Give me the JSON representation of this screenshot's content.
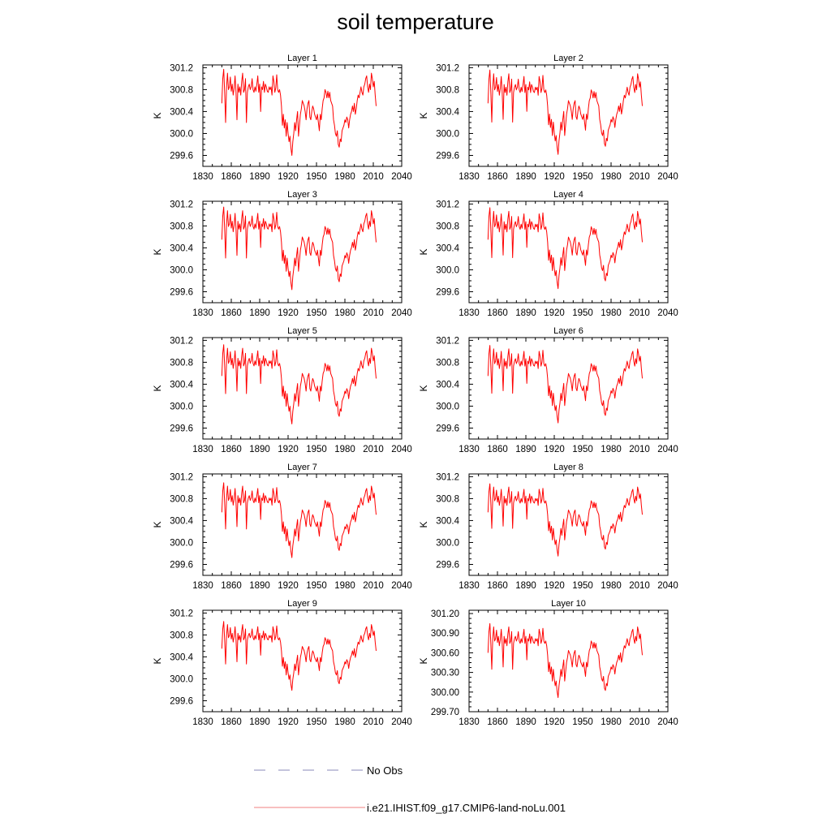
{
  "title": "soil temperature",
  "legend": {
    "items": [
      {
        "label": "No Obs",
        "color": "#8a8ab8",
        "style": "dashed"
      },
      {
        "label": "i.e21.IHIST.f09_g17.CMIP6-land-noLu.001",
        "color": "#f08080",
        "style": "solid"
      }
    ]
  },
  "chart_data": [
    {
      "type": "line",
      "title": "Layer 1",
      "ylabel": "K",
      "xlim": [
        1830,
        2040
      ],
      "ylim": [
        299.4,
        301.25
      ],
      "xticks": [
        1830,
        1860,
        1890,
        1920,
        1950,
        1980,
        2010,
        2040
      ],
      "yticks": [
        "299.6",
        "300.0",
        "300.4",
        "300.8",
        "301.2"
      ],
      "grid": false,
      "series": [
        {
          "color": "#ff0000",
          "x_start": 1850,
          "offset": 0.0,
          "amplitude": 1.0
        }
      ]
    },
    {
      "type": "line",
      "title": "Layer 2",
      "ylabel": "K",
      "xlim": [
        1830,
        2040
      ],
      "ylim": [
        299.4,
        301.25
      ],
      "xticks": [
        1830,
        1860,
        1890,
        1920,
        1950,
        1980,
        2010,
        2040
      ],
      "yticks": [
        "299.6",
        "300.0",
        "300.4",
        "300.8",
        "301.2"
      ],
      "grid": false,
      "series": [
        {
          "color": "#ff0000",
          "x_start": 1850,
          "offset": 0.0,
          "amplitude": 0.98
        }
      ]
    },
    {
      "type": "line",
      "title": "Layer 3",
      "ylabel": "K",
      "xlim": [
        1830,
        2040
      ],
      "ylim": [
        299.4,
        301.25
      ],
      "xticks": [
        1830,
        1860,
        1890,
        1920,
        1950,
        1980,
        2010,
        2040
      ],
      "yticks": [
        "299.6",
        "300.0",
        "300.4",
        "300.8",
        "301.2"
      ],
      "grid": false,
      "series": [
        {
          "color": "#ff0000",
          "x_start": 1850,
          "offset": 0.0,
          "amplitude": 0.96
        }
      ]
    },
    {
      "type": "line",
      "title": "Layer 4",
      "ylabel": "K",
      "xlim": [
        1830,
        2040
      ],
      "ylim": [
        299.4,
        301.25
      ],
      "xticks": [
        1830,
        1860,
        1890,
        1920,
        1950,
        1980,
        2010,
        2040
      ],
      "yticks": [
        "299.6",
        "300.0",
        "300.4",
        "300.8",
        "301.2"
      ],
      "grid": false,
      "series": [
        {
          "color": "#ff0000",
          "x_start": 1850,
          "offset": 0.0,
          "amplitude": 0.94
        }
      ]
    },
    {
      "type": "line",
      "title": "Layer 5",
      "ylabel": "K",
      "xlim": [
        1830,
        2040
      ],
      "ylim": [
        299.4,
        301.25
      ],
      "xticks": [
        1830,
        1860,
        1890,
        1920,
        1950,
        1980,
        2010,
        2040
      ],
      "yticks": [
        "299.6",
        "300.0",
        "300.4",
        "300.8",
        "301.2"
      ],
      "grid": false,
      "series": [
        {
          "color": "#ff0000",
          "x_start": 1850,
          "offset": 0.0,
          "amplitude": 0.92
        }
      ]
    },
    {
      "type": "line",
      "title": "Layer 6",
      "ylabel": "K",
      "xlim": [
        1830,
        2040
      ],
      "ylim": [
        299.4,
        301.25
      ],
      "xticks": [
        1830,
        1860,
        1890,
        1920,
        1950,
        1980,
        2010,
        2040
      ],
      "yticks": [
        "299.6",
        "300.0",
        "300.4",
        "300.8",
        "301.2"
      ],
      "grid": false,
      "series": [
        {
          "color": "#ff0000",
          "x_start": 1850,
          "offset": 0.0,
          "amplitude": 0.9
        }
      ]
    },
    {
      "type": "line",
      "title": "Layer 7",
      "ylabel": "K",
      "xlim": [
        1830,
        2040
      ],
      "ylim": [
        299.4,
        301.25
      ],
      "xticks": [
        1830,
        1860,
        1890,
        1920,
        1950,
        1980,
        2010,
        2040
      ],
      "yticks": [
        "299.6",
        "300.0",
        "300.4",
        "300.8",
        "301.2"
      ],
      "grid": false,
      "series": [
        {
          "color": "#ff0000",
          "x_start": 1850,
          "offset": 0.0,
          "amplitude": 0.87
        }
      ]
    },
    {
      "type": "line",
      "title": "Layer 8",
      "ylabel": "K",
      "xlim": [
        1830,
        2040
      ],
      "ylim": [
        299.4,
        301.25
      ],
      "xticks": [
        1830,
        1860,
        1890,
        1920,
        1950,
        1980,
        2010,
        2040
      ],
      "yticks": [
        "299.6",
        "300.0",
        "300.4",
        "300.8",
        "301.2"
      ],
      "grid": false,
      "series": [
        {
          "color": "#ff0000",
          "x_start": 1850,
          "offset": 0.0,
          "amplitude": 0.84
        }
      ]
    },
    {
      "type": "line",
      "title": "Layer 9",
      "ylabel": "K",
      "xlim": [
        1830,
        2040
      ],
      "ylim": [
        299.4,
        301.25
      ],
      "xticks": [
        1830,
        1860,
        1890,
        1920,
        1950,
        1980,
        2010,
        2040
      ],
      "yticks": [
        "299.6",
        "300.0",
        "300.4",
        "300.8",
        "301.2"
      ],
      "grid": false,
      "series": [
        {
          "color": "#ff0000",
          "x_start": 1850,
          "offset": 0.0,
          "amplitude": 0.8
        }
      ]
    },
    {
      "type": "line",
      "title": "Layer 10",
      "ylabel": "K",
      "xlim": [
        1830,
        2040
      ],
      "ylim": [
        299.7,
        301.25
      ],
      "xticks": [
        1830,
        1860,
        1890,
        1920,
        1950,
        1980,
        2010,
        2040
      ],
      "yticks": [
        "299.70",
        "300.00",
        "300.30",
        "300.60",
        "300.90",
        "301.20"
      ],
      "grid": false,
      "series": [
        {
          "color": "#ff0000",
          "x_start": 1850,
          "offset": 0.05,
          "amplitude": 0.72
        }
      ]
    }
  ],
  "base_series": {
    "description_units": "K anomalies relative to 300.55 K, one value per year starting 1850",
    "values": [
      0.0,
      0.45,
      0.62,
      0.2,
      -0.35,
      0.3,
      0.55,
      0.25,
      0.3,
      0.48,
      0.22,
      0.35,
      0.15,
      0.28,
      0.5,
      0.2,
      -0.3,
      0.35,
      0.2,
      0.3,
      0.15,
      0.4,
      0.55,
      0.2,
      0.25,
      0.45,
      -0.35,
      0.2,
      0.3,
      0.35,
      0.25,
      0.3,
      0.45,
      0.25,
      0.2,
      0.3,
      0.22,
      0.35,
      0.5,
      0.2,
      0.35,
      -0.15,
      0.3,
      0.25,
      0.4,
      0.2,
      0.35,
      0.3,
      0.22,
      0.2,
      0.3,
      0.25,
      0.3,
      0.15,
      0.5,
      0.4,
      0.2,
      0.28,
      0.52,
      0.25,
      0.2,
      0.25,
      0.15,
      -0.05,
      -0.4,
      -0.2,
      -0.45,
      -0.3,
      -0.6,
      -0.35,
      -0.55,
      -0.7,
      -0.6,
      -0.82,
      -0.95,
      -0.7,
      -0.55,
      -0.35,
      -0.5,
      -0.3,
      -0.15,
      -0.6,
      -0.4,
      -0.2,
      -0.1,
      0.05,
      0.0,
      -0.05,
      -0.15,
      -0.3,
      -0.1,
      0.0,
      0.05,
      -0.25,
      -0.3,
      -0.15,
      -0.05,
      -0.1,
      -0.2,
      -0.25,
      -0.3,
      -0.2,
      -0.35,
      -0.5,
      -0.2,
      -0.3,
      -0.1,
      0.05,
      0.1,
      0.25,
      0.2,
      0.1,
      0.22,
      0.1,
      0.2,
      0.05,
      0.0,
      -0.05,
      -0.3,
      -0.4,
      -0.55,
      -0.6,
      -0.5,
      -0.75,
      -0.8,
      -0.65,
      -0.7,
      -0.5,
      -0.45,
      -0.4,
      -0.3,
      -0.35,
      -0.25,
      -0.3,
      -0.45,
      -0.3,
      -0.2,
      -0.15,
      -0.05,
      -0.15,
      0.0,
      -0.2,
      -0.1,
      0.05,
      0.15,
      0.1,
      0.2,
      0.3,
      0.2,
      0.15,
      0.3,
      0.35,
      0.45,
      0.5,
      0.3,
      0.2,
      0.35,
      0.25,
      0.55,
      0.45,
      0.3,
      0.4,
      0.15,
      -0.05
    ]
  }
}
